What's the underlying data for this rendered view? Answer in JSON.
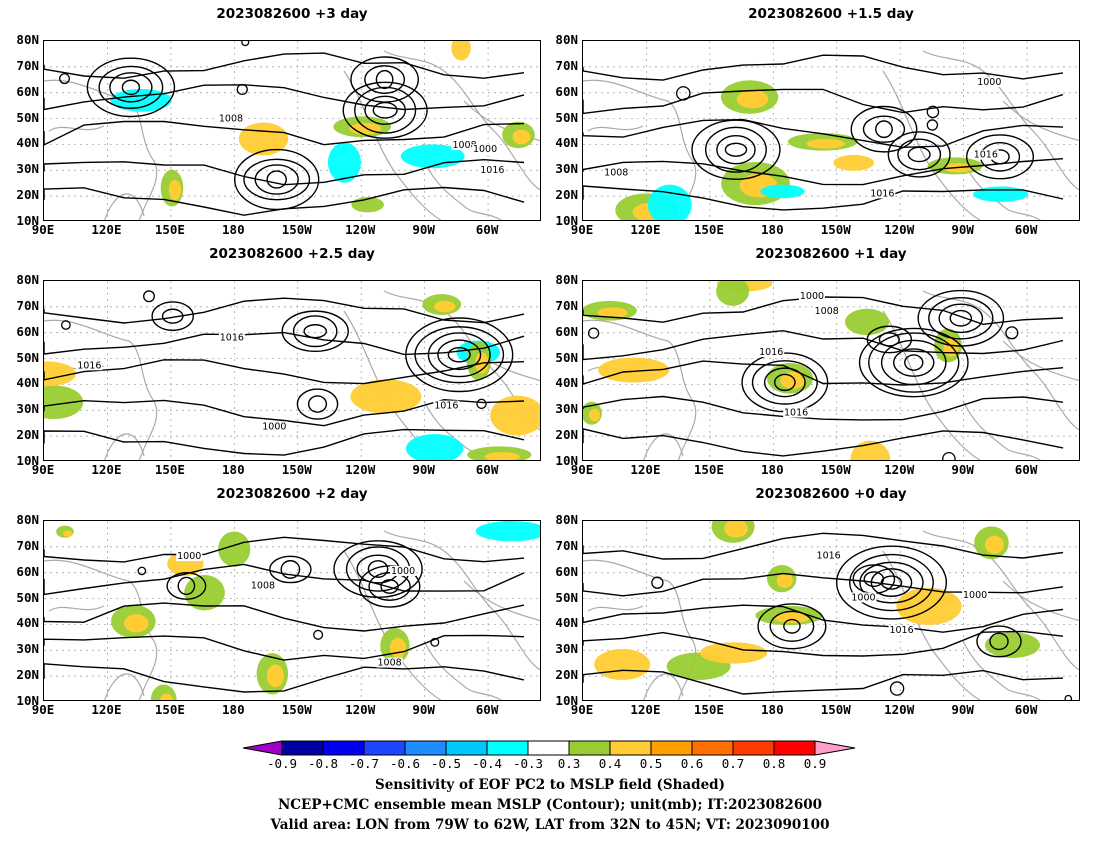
{
  "panels": [
    {
      "title": "2023082600  +3 day",
      "col": 0,
      "row": 0
    },
    {
      "title": "2023082600  +1.5 day",
      "col": 1,
      "row": 0
    },
    {
      "title": "2023082600  +2.5 day",
      "col": 0,
      "row": 1
    },
    {
      "title": "2023082600  +1 day",
      "col": 1,
      "row": 1
    },
    {
      "title": "2023082600  +2 day",
      "col": 0,
      "row": 2
    },
    {
      "title": "2023082600  +0 day",
      "col": 1,
      "row": 2
    }
  ],
  "lat_labels": [
    "80N",
    "70N",
    "60N",
    "50N",
    "40N",
    "30N",
    "20N",
    "10N"
  ],
  "lon_labels": [
    "90E",
    "120E",
    "150E",
    "180",
    "150W",
    "120W",
    "90W",
    "60W"
  ],
  "contour_labels": [
    "1000",
    "1008",
    "1016"
  ],
  "colorbar": {
    "ticks": [
      "-0.9",
      "-0.8",
      "-0.7",
      "-0.6",
      "-0.5",
      "-0.4",
      "-0.3",
      "0.3",
      "0.4",
      "0.5",
      "0.6",
      "0.7",
      "0.8",
      "0.9"
    ],
    "colors": [
      "#a000c8",
      "#0000a0",
      "#0000f0",
      "#1e46ff",
      "#1e8cff",
      "#00c8ff",
      "#00ffff",
      "#ffffff",
      "#99cc33",
      "#ffcc33",
      "#ffa000",
      "#ff7000",
      "#ff3c00",
      "#ff0000",
      "#ffa0c8"
    ]
  },
  "captions": {
    "line1": "Sensitivity of EOF PC2 to MSLP field (Shaded)",
    "line2": "NCEP+CMC ensemble mean MSLP (Contour); unit(mb); IT:2023082600",
    "line3": "Valid area: LON from 79W to 62W, LAT from 32N to 45N; VT: 2023090100"
  }
}
